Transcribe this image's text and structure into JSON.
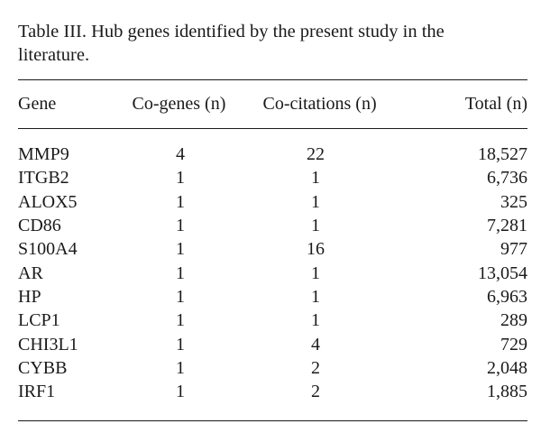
{
  "caption": {
    "line1": "Table III. Hub genes identified by the present study in the",
    "line2": "literature."
  },
  "table": {
    "headers": [
      "Gene",
      "Co-genes (n)",
      "Co-citations (n)",
      "Total (n)"
    ],
    "rows": [
      [
        "MMP9",
        "4",
        "22",
        "18,527"
      ],
      [
        "ITGB2",
        "1",
        "1",
        "6,736"
      ],
      [
        "ALOX5",
        "1",
        "1",
        "325"
      ],
      [
        "CD86",
        "1",
        "1",
        "7,281"
      ],
      [
        "S100A4",
        "1",
        "16",
        "977"
      ],
      [
        "AR",
        "1",
        "1",
        "13,054"
      ],
      [
        "HP",
        "1",
        "1",
        "6,963"
      ],
      [
        "LCP1",
        "1",
        "1",
        "289"
      ],
      [
        "CHI3L1",
        "1",
        "4",
        "729"
      ],
      [
        "CYBB",
        "1",
        "2",
        "2,048"
      ],
      [
        "IRF1",
        "1",
        "2",
        "1,885"
      ]
    ]
  }
}
